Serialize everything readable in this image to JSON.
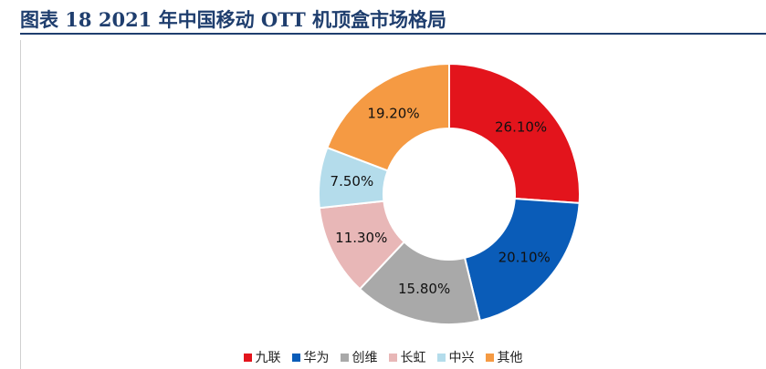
{
  "figure_title": "图表 18   2021 年中国移动 OTT 机顶盒市场格局",
  "chart_data": {
    "type": "pie",
    "variant": "donut",
    "title": "图表 18   2021 年中国移动 OTT 机顶盒市场格局",
    "legend_position": "bottom",
    "slices": [
      {
        "name": "九联",
        "value": 26.1,
        "label": "26.10%",
        "color": "#e3141c"
      },
      {
        "name": "华为",
        "value": 20.1,
        "label": "20.10%",
        "color": "#0a5cb8"
      },
      {
        "name": "创维",
        "value": 15.8,
        "label": "15.80%",
        "color": "#a9a9a9"
      },
      {
        "name": "长虹",
        "value": 11.3,
        "label": "11.30%",
        "color": "#e8b7b7"
      },
      {
        "name": "中兴",
        "value": 7.5,
        "label": "7.50%",
        "color": "#b4dceb"
      },
      {
        "name": "其他",
        "value": 19.2,
        "label": "19.20%",
        "color": "#f59a43"
      }
    ]
  }
}
